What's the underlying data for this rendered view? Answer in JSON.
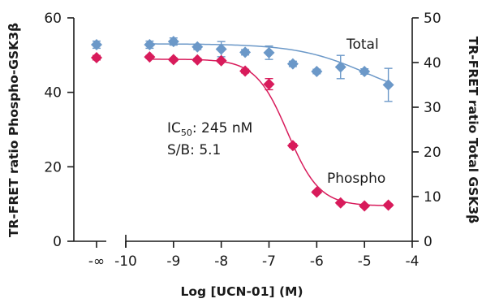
{
  "chart_data": {
    "type": "scatter",
    "xlabel": "Log [UCN-01] (M)",
    "ylabel_left": "TR-FRET ratio Phospho-GSK3β",
    "ylabel_right": "TR-FRET ratio Total GSK3β",
    "x_ticks": [
      "-∞",
      "-10",
      "-9",
      "-8",
      "-7",
      "-6",
      "-5",
      "-4"
    ],
    "xlim": [
      -10,
      -4
    ],
    "y_left_ticks": [
      "0",
      "20",
      "40",
      "60"
    ],
    "y_left_lim": [
      0,
      60
    ],
    "y_right_ticks": [
      "0",
      "10",
      "20",
      "30",
      "40",
      "50"
    ],
    "y_right_lim": [
      0,
      50
    ],
    "axis_break": true,
    "annotations": {
      "ic50_prefix": "IC",
      "ic50_sub": "50",
      "ic50_value": ": 245 nM",
      "sb": "S/B: 5.1"
    },
    "series": [
      {
        "name": "Total",
        "axis": "right",
        "color": "#6b98c8",
        "marker": "diamond",
        "zero_point": {
          "y": 44.0,
          "err": 0.8
        },
        "x": [
          -9.5,
          -9.0,
          -8.5,
          -8.0,
          -7.5,
          -7.0,
          -6.5,
          -6.0,
          -5.5,
          -5.0,
          -4.5
        ],
        "y": [
          44.0,
          44.7,
          43.5,
          43.0,
          42.3,
          42.2,
          39.7,
          38.0,
          39.0,
          38.0,
          35.0
        ],
        "err": [
          0.8,
          0.8,
          0.6,
          1.7,
          0.6,
          1.5,
          0.6,
          0.5,
          2.6,
          0.6,
          3.7
        ],
        "fit": {
          "top": 44.2,
          "bottom": 31.0,
          "logec50": -4.95,
          "hill": 0.6
        }
      },
      {
        "name": "Phospho",
        "axis": "left",
        "color": "#d81b5b",
        "marker": "diamond",
        "zero_point": {
          "y": 49.3,
          "err": 0.6
        },
        "x": [
          -9.5,
          -9.0,
          -8.5,
          -8.0,
          -7.5,
          -7.0,
          -6.5,
          -6.0,
          -5.5,
          -5.0,
          -4.5
        ],
        "y": [
          49.5,
          48.8,
          48.7,
          48.5,
          45.7,
          42.2,
          25.7,
          13.2,
          10.3,
          9.5,
          9.7
        ],
        "err": [
          0.4,
          0.4,
          0.4,
          0.4,
          0.5,
          1.5,
          0.5,
          0.4,
          0.4,
          0.4,
          0.4
        ],
        "fit": {
          "top": 48.9,
          "bottom": 9.5,
          "logec50": -6.61,
          "hill": 1.3
        }
      }
    ]
  }
}
